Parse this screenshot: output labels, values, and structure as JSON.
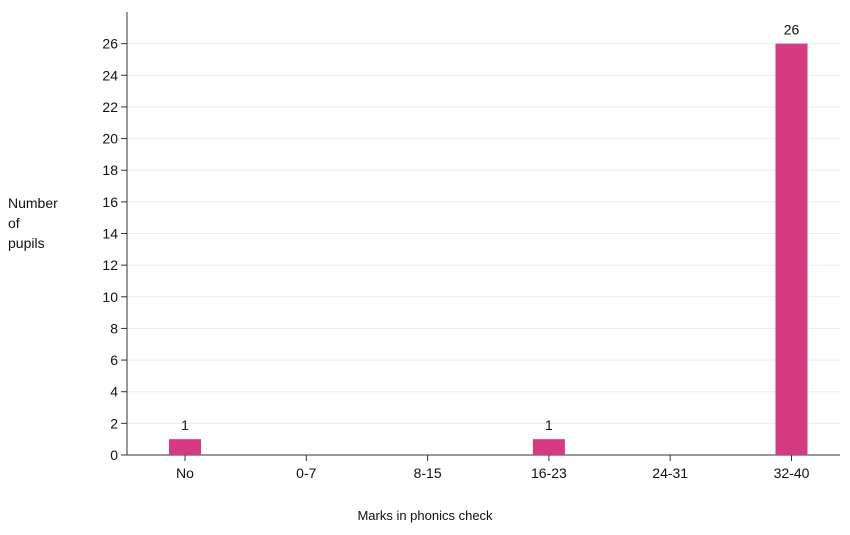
{
  "chart_data": {
    "type": "bar",
    "categories": [
      "No",
      "0-7",
      "8-15",
      "16-23",
      "24-31",
      "32-40"
    ],
    "values": [
      1,
      0,
      0,
      1,
      0,
      26
    ],
    "data_labels": [
      "1",
      "",
      "",
      "1",
      "",
      "26"
    ],
    "xlabel": "Marks in phonics check",
    "ylabel_lines": [
      "Number",
      "of",
      "pupils"
    ],
    "ylim": [
      0,
      28
    ],
    "y_ticks": [
      0,
      2,
      4,
      6,
      8,
      10,
      12,
      14,
      16,
      18,
      20,
      22,
      24,
      26
    ],
    "grid": "horizontal",
    "bar_color": "#d63a80"
  }
}
